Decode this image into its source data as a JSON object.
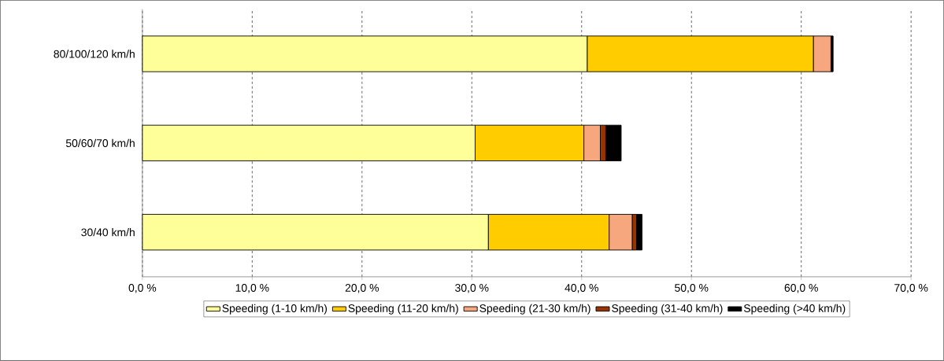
{
  "chart_data": {
    "type": "bar",
    "orientation": "horizontal",
    "stacked": true,
    "categories": [
      "80/100/120 km/h",
      "50/60/70 km/h",
      "30/40 km/h"
    ],
    "series": [
      {
        "name": "Speeding (1-10 km/h)",
        "color": "#ffff99",
        "values": [
          40.5,
          30.3,
          31.5
        ]
      },
      {
        "name": "Speeding (11-20 km/h)",
        "color": "#ffcc00",
        "values": [
          20.6,
          9.9,
          11.0
        ]
      },
      {
        "name": "Speeding (21-30 km/h)",
        "color": "#f7a77e",
        "values": [
          1.6,
          1.5,
          2.1
        ]
      },
      {
        "name": "Speeding (31-40 km/h)",
        "color": "#993300",
        "values": [
          null,
          0.5,
          0.4
        ]
      },
      {
        "name": "Speeding (>40 km/h)",
        "color": "#000000",
        "values": [
          0.2,
          1.4,
          0.5
        ]
      }
    ],
    "xlim": [
      0,
      70
    ],
    "xticks": [
      {
        "value": 0,
        "label": "0,0 %"
      },
      {
        "value": 10,
        "label": "10,0 %"
      },
      {
        "value": 20,
        "label": "20,0 %"
      },
      {
        "value": 30,
        "label": "30,0 %"
      },
      {
        "value": 40,
        "label": "40,0 %"
      },
      {
        "value": 50,
        "label": "50,0 %"
      },
      {
        "value": 60,
        "label": "60,0 %"
      },
      {
        "value": 70,
        "label": "70,0 %"
      }
    ],
    "grid": "x",
    "legend": "bottom"
  }
}
